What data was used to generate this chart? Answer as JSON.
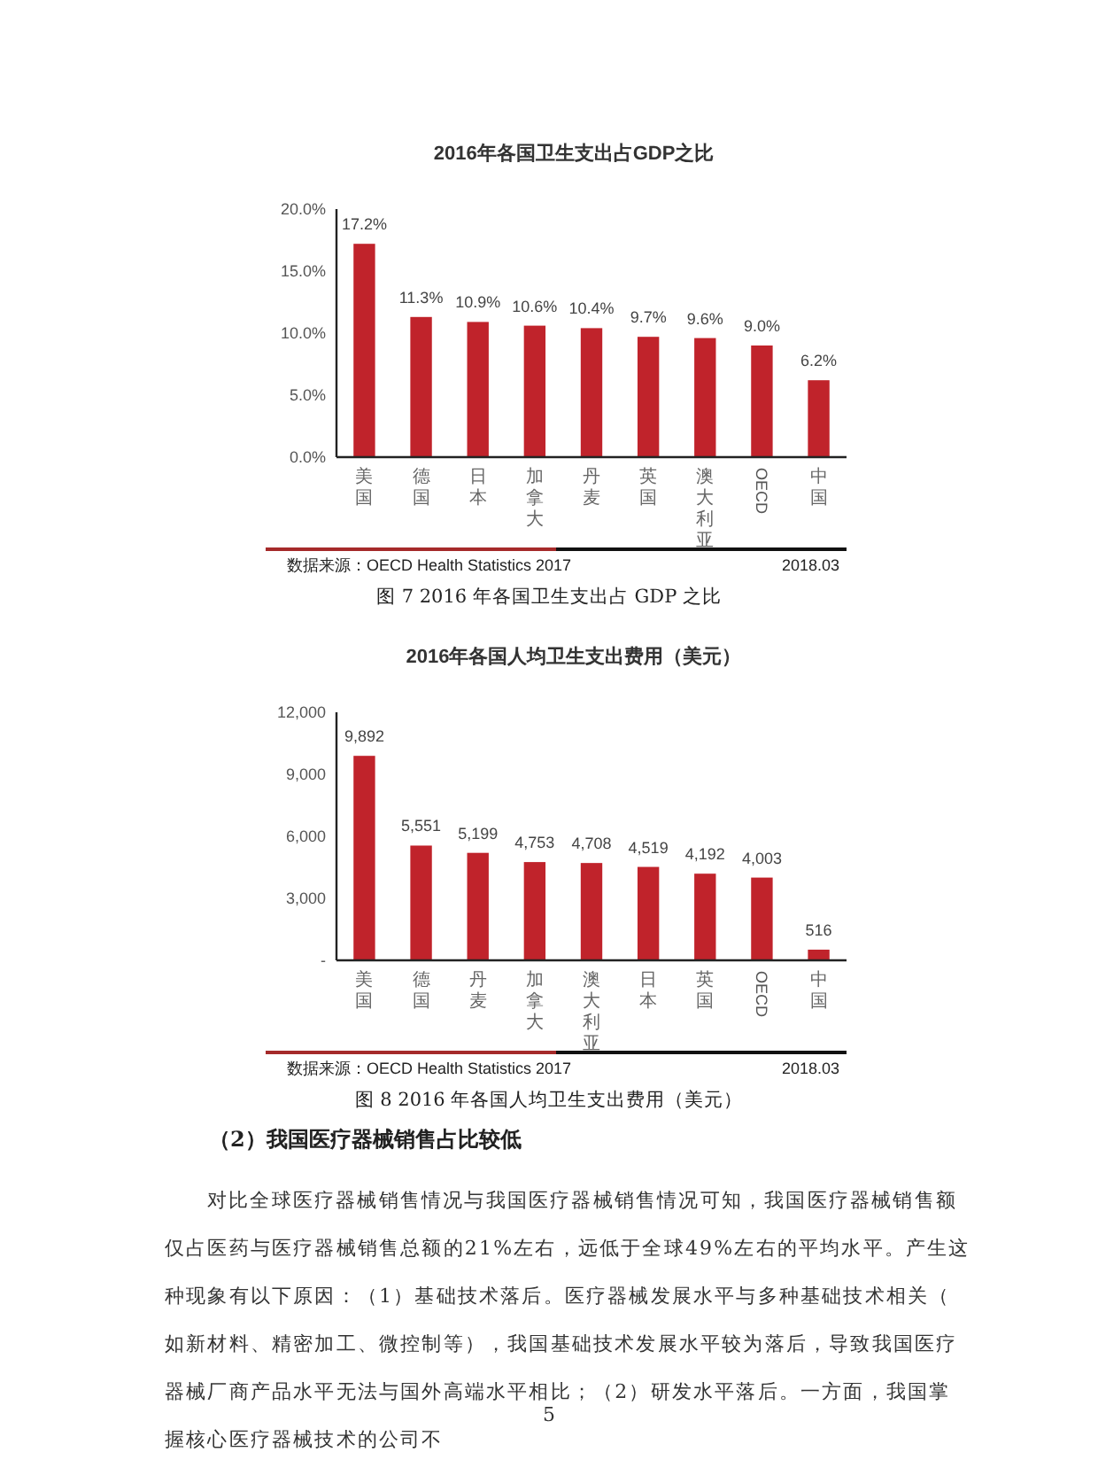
{
  "chart_data": [
    {
      "type": "bar",
      "title": "2016年各国卫生支出占GDP之比",
      "categories": [
        "美国",
        "德国",
        "日本",
        "加拿大",
        "丹麦",
        "英国",
        "澳大利亚",
        "OECD",
        "中国"
      ],
      "values": [
        17.2,
        11.3,
        10.9,
        10.6,
        10.4,
        9.7,
        9.6,
        9.0,
        6.2
      ],
      "color": "#c0232b",
      "value_labels": [
        "17.2%",
        "11.3%",
        "10.9%",
        "10.6%",
        "10.4%",
        "9.7%",
        "9.6%",
        "9.0%",
        "6.2%"
      ],
      "ylim": [
        0,
        20
      ],
      "yticks": [
        {
          "value": 0,
          "label": "0.0%"
        },
        {
          "value": 5,
          "label": "5.0%"
        },
        {
          "value": 10,
          "label": "10.0%"
        },
        {
          "value": 15,
          "label": "15.0%"
        },
        {
          "value": 20,
          "label": "20.0%"
        }
      ],
      "grid": false,
      "annotations": [
        "数据来源：OECD Health Statistics 2017",
        "2018.03",
        "图 7 2016 年各国卫生支出占 GDP 之比"
      ]
    },
    {
      "type": "bar",
      "title": "2016年各国人均卫生支出费用（美元）",
      "categories": [
        "美国",
        "德国",
        "丹麦",
        "加拿大",
        "澳大利亚",
        "日本",
        "英国",
        "OECD",
        "中国"
      ],
      "values": [
        9892,
        5551,
        5199,
        4753,
        4708,
        4519,
        4192,
        4003,
        516
      ],
      "color": "#c0232b",
      "value_labels": [
        "9,892",
        "5,551",
        "5,199",
        "4,753",
        "4,708",
        "4,519",
        "4,192",
        "4,003",
        "516"
      ],
      "ylim": [
        0,
        12000
      ],
      "yticks": [
        {
          "value": 0,
          "label": "-"
        },
        {
          "value": 3000,
          "label": "3,000"
        },
        {
          "value": 6000,
          "label": "6,000"
        },
        {
          "value": 9000,
          "label": "9,000"
        },
        {
          "value": 12000,
          "label": "12,000"
        }
      ],
      "grid": false,
      "annotations": [
        "数据来源：OECD Health Statistics 2017",
        "2018.03",
        "图 8 2016 年各国人均卫生支出费用（美元）",
        "（2）我国医疗器械销售占比较低",
        "对比全球医疗器械销售情况与我国医疗器械销售情况可知，我国医疗器械销售额仅占医药与医疗器械销售总额的21%左右，远低于全球49%左右的平均水平。产生这种现象有以下原因：（1）基础技术落后。医疗器械发展水平与多种基础技术相关（如新材料、精密加工、微控制等），我国基础技术发展水平较为落后，导致我国医疗器械厂商产品水平无法与国外高端水平相比；（2）研发水平落后。一方面，我国掌握核心医疗器械技术的公司不",
        "5"
      ]
    }
  ]
}
